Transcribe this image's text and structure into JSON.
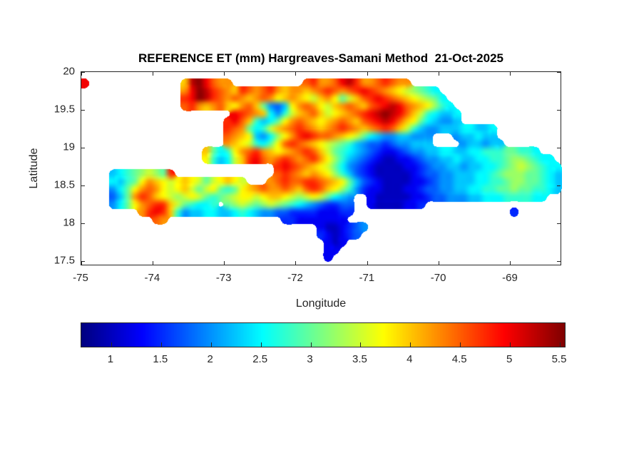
{
  "figure": {
    "title": "REFERENCE ET (mm) Hargreaves-Samani Method  21-Oct-2025",
    "background": "#ffffff",
    "axis_color": "#262626"
  },
  "axes": {
    "xlabel": "Longitude",
    "ylabel": "Latitude",
    "x_ticks": [
      {
        "label": "-75",
        "value": -75
      },
      {
        "label": "-74",
        "value": -74
      },
      {
        "label": "-73",
        "value": -73
      },
      {
        "label": "-72",
        "value": -72
      },
      {
        "label": "-71",
        "value": -71
      },
      {
        "label": "-70",
        "value": -70
      },
      {
        "label": "-69",
        "value": -69
      }
    ],
    "y_ticks": [
      {
        "label": "20",
        "value": 20
      },
      {
        "label": "19.5",
        "value": 19.5
      },
      {
        "label": "19",
        "value": 19
      },
      {
        "label": "18.5",
        "value": 18.5
      },
      {
        "label": "18",
        "value": 18
      },
      {
        "label": "17.5",
        "value": 17.5
      }
    ],
    "xlim": [
      -75,
      -68.28
    ],
    "ylim": [
      17.43,
      20
    ]
  },
  "colorbar": {
    "orientation": "horizontal",
    "colormap": "jet",
    "range": [
      0.7,
      5.55
    ],
    "ticks": [
      {
        "label": "1",
        "value": 1
      },
      {
        "label": "1.5",
        "value": 1.5
      },
      {
        "label": "2",
        "value": 2
      },
      {
        "label": "2.5",
        "value": 2.5
      },
      {
        "label": "3",
        "value": 3
      },
      {
        "label": "3.5",
        "value": 3.5
      },
      {
        "label": "4",
        "value": 4
      },
      {
        "label": "4.5",
        "value": 4.5
      },
      {
        "label": "5",
        "value": 5
      },
      {
        "label": "5.5",
        "value": 5.5
      }
    ]
  },
  "chart_data": {
    "type": "heatmap",
    "title": "REFERENCE ET (mm) Hargreaves-Samani Method  21-Oct-2025",
    "xlabel": "Longitude",
    "ylabel": "Latitude",
    "units": "mm",
    "colormap": "jet",
    "value_range": [
      0.7,
      5.55
    ],
    "xlim": [
      -75,
      -68.28
    ],
    "ylim": [
      17.43,
      20
    ],
    "grid": {
      "lon_start": -75.0,
      "lon_step": 0.1,
      "lat_start": 20.0,
      "lat_step": -0.1,
      "cols": 68,
      "rows": 26,
      "no_data_char": ".",
      "value_encoding": {
        "1": 1.0,
        "2": 1.25,
        "3": 1.5,
        "4": 1.75,
        "5": 2.0,
        "6": 2.25,
        "7": 2.5,
        "8": 2.75,
        "9": 3.0,
        "A": 3.25,
        "B": 3.5,
        "C": 3.75,
        "D": 4.0,
        "E": 4.25,
        "F": 4.5,
        "G": 4.75,
        "H": 5.0,
        "I": 5.25,
        "J": 5.5
      },
      "cells": [
        "....................................................................",
        "H.............DIJHFEE..........FGEEFHIGEEFGFEE......................",
        "..............EHJIGFEDGFEFGEDEEDEFGFEFGHGFEDCBA987..................",
        "..............GHJIGFEFEDEFECDEDCBDEC9BDFGHGFEDCBA97.................",
        "..............FGEDEFDCEFD9546CEFECBDEFEDFGHIHFEDCA87................",
        ".....................HGFED758BDEFDBCDEFGHIJIHFDB87667...............",
        "....................GHFD8679CEFEDCDEFEDFGHIHFDC976556...............",
        "....................GFE978BDEFGFEDEFGFEDEFGFDB865566677667..........",
        "....................FEDC657ACEGHGFFEDCB9765566555...566766..........",
        "....................EDCB879CFGFEDCBA9865443455666....566566.........",
        ".................D978CEFGEDCDEFGFDB98765432234556677667788899887....",
        ".................C867BDGHFEFGFEFGECA865432112234556676677889AA9877..",
        "...........................GHGFEDCB9754321111223455665667789ABA9877.",
        "....6789ABA9G..............FGFEDEDCA86432111112344556667789AAA99876.",
        "....7689CEDCBCDCB9BCDCB...EFGFFGGFEDC96432111122345566677889AA99876.",
        "....579CEFECBCDB9BC989CDEFEEFEDFGFDCA85322111223445566778899A998876.",
        "....469EGFDCBABCB989ABCCBCDDCBABCB9765..2111112234455566777888877...",
        "....579CEFGGDB98778.9ABA9ABA9876543344..21111223....................",
        "........EGHGD8566776678765544333322233......................3.......",
        "..........FE................332222222...............................",
        ".................................2112345............................",
        ".................................321234.............................",
        "..................................212...............................",
        "..................................22................................",
        "..................................2.................................",
        "...................................................................."
      ]
    }
  }
}
